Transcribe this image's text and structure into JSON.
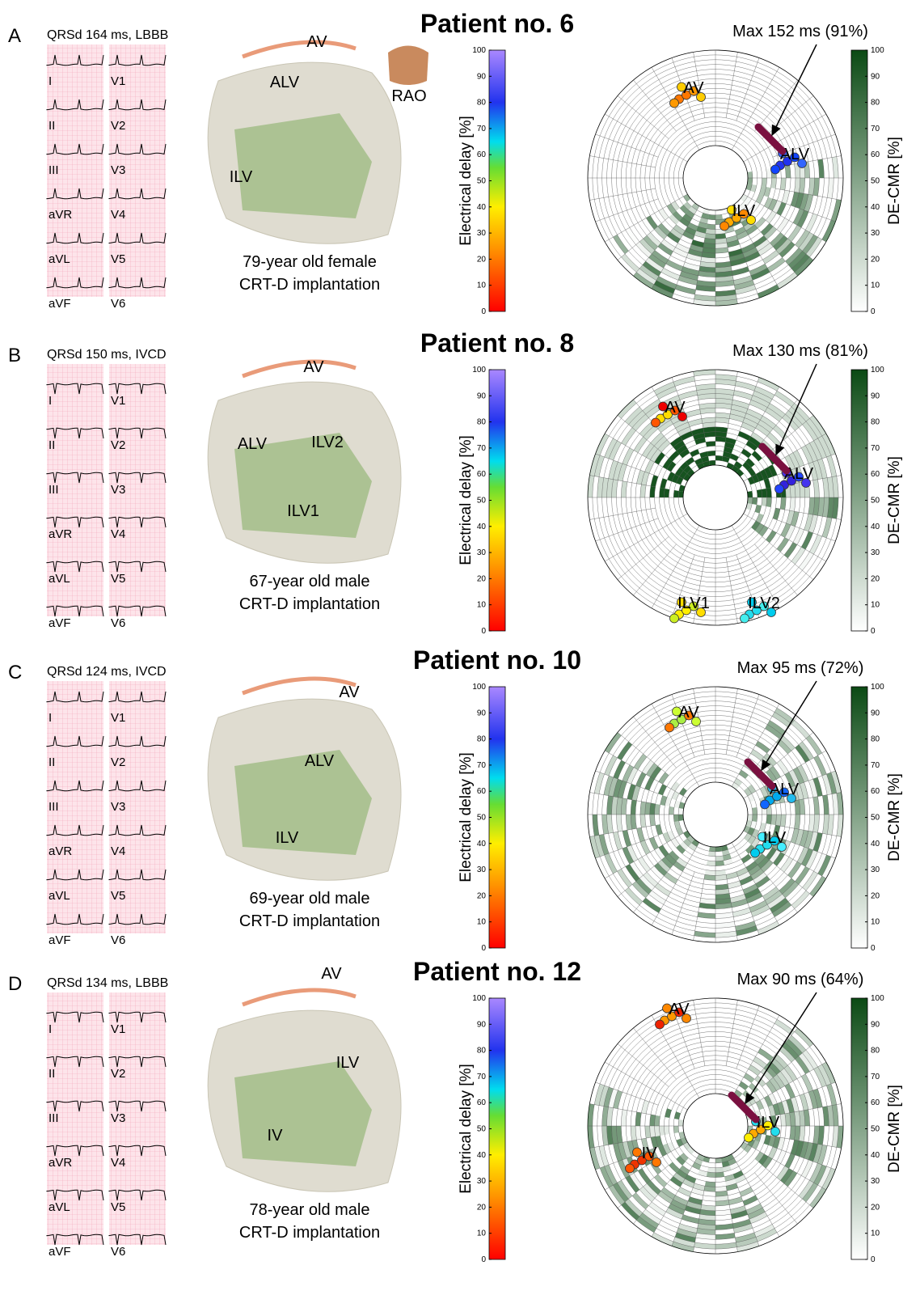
{
  "leads_left": [
    "I",
    "II",
    "III",
    "aVR",
    "aVL",
    "aVF"
  ],
  "leads_right": [
    "V1",
    "V2",
    "V3",
    "V4",
    "V5",
    "V6"
  ],
  "colorbar_left": {
    "label": "Electrical delay [%]",
    "ticks": [
      0,
      10,
      20,
      30,
      40,
      50,
      60,
      70,
      80,
      90,
      100
    ]
  },
  "colorbar_right": {
    "label": "DE-CMR [%]",
    "ticks": [
      0,
      10,
      20,
      30,
      40,
      50,
      60,
      70,
      80,
      90,
      100
    ]
  },
  "panels": [
    {
      "letter": "A",
      "title": "Patient no. 6",
      "qrs": "QRSd 164 ms, LBBB",
      "model_labels": [
        "AV",
        "ALV",
        "ILV"
      ],
      "view": "RAO",
      "demographics": [
        "79-year old female",
        "CRT-D implantation"
      ],
      "polar_labels": [
        "AV",
        "ALV",
        "ILV"
      ],
      "max_label": "Max 152 ms (91%)"
    },
    {
      "letter": "B",
      "title": "Patient no. 8",
      "qrs": "QRSd 150 ms, IVCD",
      "model_labels": [
        "AV",
        "ALV",
        "ILV2",
        "ILV1"
      ],
      "demographics": [
        "67-year old male",
        "CRT-D implantation"
      ],
      "polar_labels": [
        "AV",
        "ALV",
        "ILV1",
        "ILV2"
      ],
      "max_label": "Max 130 ms (81%)"
    },
    {
      "letter": "C",
      "title": "Patient no. 10",
      "qrs": "QRSd 124 ms, IVCD",
      "model_labels": [
        "AV",
        "ALV",
        "ILV"
      ],
      "demographics": [
        "69-year old male",
        "CRT-D implantation"
      ],
      "polar_labels": [
        "AV",
        "ALV",
        "ILV"
      ],
      "max_label": "Max 95 ms (72%)"
    },
    {
      "letter": "D",
      "title": "Patient no. 12",
      "qrs": "QRSd 134 ms, LBBB",
      "model_labels": [
        "AV",
        "ILV",
        "IV"
      ],
      "demographics": [
        "78-year old male",
        "CRT-D implantation"
      ],
      "polar_labels": [
        "AV",
        "IV",
        "ILV"
      ],
      "max_label": "Max 90 ms (64%)"
    }
  ]
}
